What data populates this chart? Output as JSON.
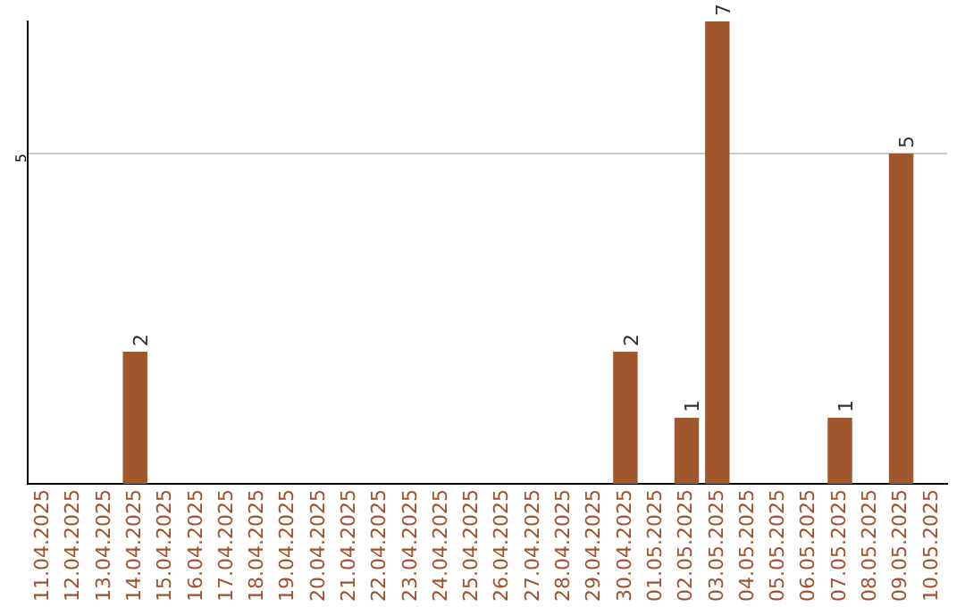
{
  "chart_data": {
    "type": "bar",
    "categories": [
      "11.04.2025",
      "12.04.2025",
      "13.04.2025",
      "14.04.2025",
      "15.04.2025",
      "16.04.2025",
      "17.04.2025",
      "18.04.2025",
      "19.04.2025",
      "20.04.2025",
      "21.04.2025",
      "22.04.2025",
      "23.04.2025",
      "24.04.2025",
      "25.04.2025",
      "26.04.2025",
      "27.04.2025",
      "28.04.2025",
      "29.04.2025",
      "30.04.2025",
      "01.05.2025",
      "02.05.2025",
      "03.05.2025",
      "04.05.2025",
      "05.05.2025",
      "06.05.2025",
      "07.05.2025",
      "08.05.2025",
      "09.05.2025",
      "10.05.2025"
    ],
    "values": [
      0,
      0,
      0,
      2,
      0,
      0,
      0,
      0,
      0,
      0,
      0,
      0,
      0,
      0,
      0,
      0,
      0,
      0,
      0,
      2,
      0,
      1,
      7,
      0,
      0,
      0,
      1,
      0,
      5,
      0
    ],
    "value_labels": [
      null,
      null,
      null,
      "2",
      null,
      null,
      null,
      null,
      null,
      null,
      null,
      null,
      null,
      null,
      null,
      null,
      null,
      null,
      null,
      "2",
      null,
      "1",
      "7",
      null,
      null,
      null,
      "1",
      null,
      "5",
      null
    ],
    "color": "#a0572b",
    "ylim": [
      0,
      7
    ],
    "yticks": [
      5
    ],
    "grid": "y",
    "legend": false
  }
}
